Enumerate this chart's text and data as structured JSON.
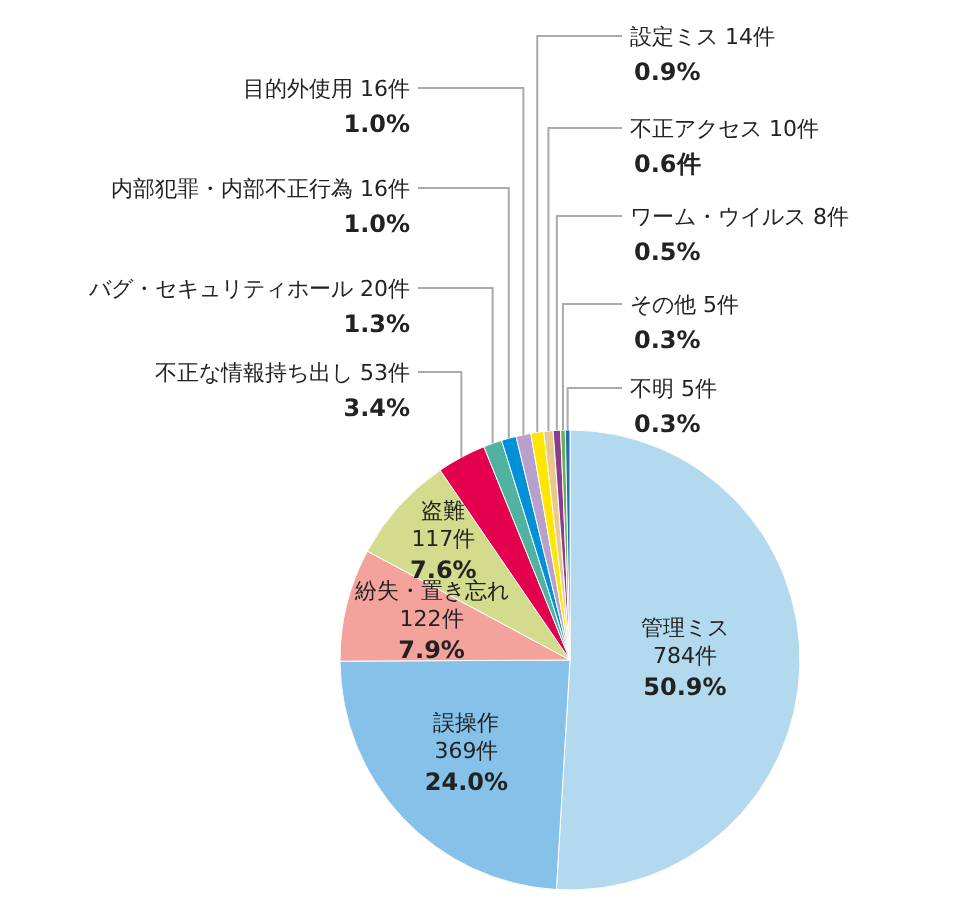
{
  "chart_data": {
    "type": "pie",
    "categories": [
      "管理ミス",
      "誤操作",
      "紛失・置き忘れ",
      "盗難",
      "不正な情報持ち出し",
      "バグ・セキュリティホール",
      "内部犯罪・内部不正行為",
      "目的外使用",
      "設定ミス",
      "不正アクセス",
      "ワーム・ウイルス",
      "その他",
      "不明"
    ],
    "values": [
      784,
      369,
      122,
      117,
      53,
      20,
      16,
      16,
      14,
      10,
      8,
      5,
      5
    ],
    "colors": [
      "#b3d9ee",
      "#86c1ea",
      "#f3a29c",
      "#d3dc8c",
      "#e2004f",
      "#4fb3a0",
      "#0090d8",
      "#b9a0cc",
      "#ffe600",
      "#e8c98a",
      "#8a3d8f",
      "#6ab04c",
      "#1f6fb5"
    ],
    "value_labels": [
      "784件\n50.9%",
      "369件\n24.0%",
      "122件\n7.9%",
      "117件\n7.6%",
      "53件\n3.4%",
      "20件\n1.3%",
      "16件\n1.0%",
      "16件\n1.0%",
      "14件\n0.9%",
      "10件\n0.6件",
      "8件\n0.5%",
      "5件\n0.3%",
      "5件\n0.3%"
    ]
  }
}
